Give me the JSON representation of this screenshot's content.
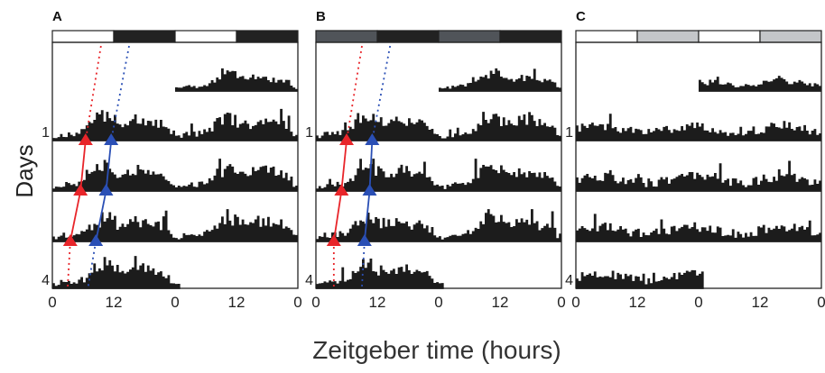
{
  "figure": {
    "ylabel": "Days",
    "xlabel": "Zeitgeber time (hours)"
  },
  "colors": {
    "activity": "#1c1c1c",
    "frame": "#222222",
    "red_marker": "#e8252a",
    "blue_marker": "#2a4fb5",
    "light": "#ffffff",
    "dark_bar": "#222222",
    "dim_light": "#505459",
    "subjective_light": "#c4c6c9"
  },
  "chart_data": [
    {
      "panel": "A",
      "type": "actogram",
      "condition_bar": [
        "light",
        "dark",
        "light",
        "dark"
      ],
      "x_ticks": [
        "0",
        "12",
        "0",
        "12",
        "0"
      ],
      "x_range_hours": [
        0,
        48
      ],
      "day_labels": [
        {
          "day": 1,
          "label": "1"
        },
        {
          "day": 4,
          "label": "4"
        }
      ],
      "red_onsets_zt": [
        6.5,
        5.5,
        3.5
      ],
      "blue_onsets_zt": [
        11.5,
        10.5,
        8.5
      ],
      "red_extrapolation_zt": [
        9.5,
        3.0
      ],
      "blue_extrapolation_zt": [
        15.0,
        7.0
      ]
    },
    {
      "panel": "B",
      "type": "actogram",
      "condition_bar": [
        "dim_light",
        "dark_bar",
        "dim_light",
        "dark_bar"
      ],
      "x_ticks": [
        "0",
        "12",
        "0",
        "12",
        "0"
      ],
      "x_range_hours": [
        0,
        48
      ],
      "day_labels": [
        {
          "day": 1,
          "label": "1"
        },
        {
          "day": 4,
          "label": "4"
        }
      ],
      "red_onsets_zt": [
        6.0,
        5.0,
        3.5
      ],
      "blue_onsets_zt": [
        11.0,
        10.5,
        9.5
      ],
      "red_extrapolation_zt": [
        9.0,
        3.5
      ],
      "blue_extrapolation_zt": [
        14.5,
        9.0
      ]
    },
    {
      "panel": "C",
      "type": "actogram",
      "condition_bar": [
        "light",
        "subjective_light",
        "light",
        "subjective_light"
      ],
      "x_ticks": [
        "0",
        "12",
        "0",
        "12",
        "0"
      ],
      "x_range_hours": [
        0,
        48
      ],
      "day_labels": [
        {
          "day": 1,
          "label": "1"
        },
        {
          "day": 4,
          "label": "4"
        }
      ],
      "red_onsets_zt": [],
      "blue_onsets_zt": []
    }
  ]
}
